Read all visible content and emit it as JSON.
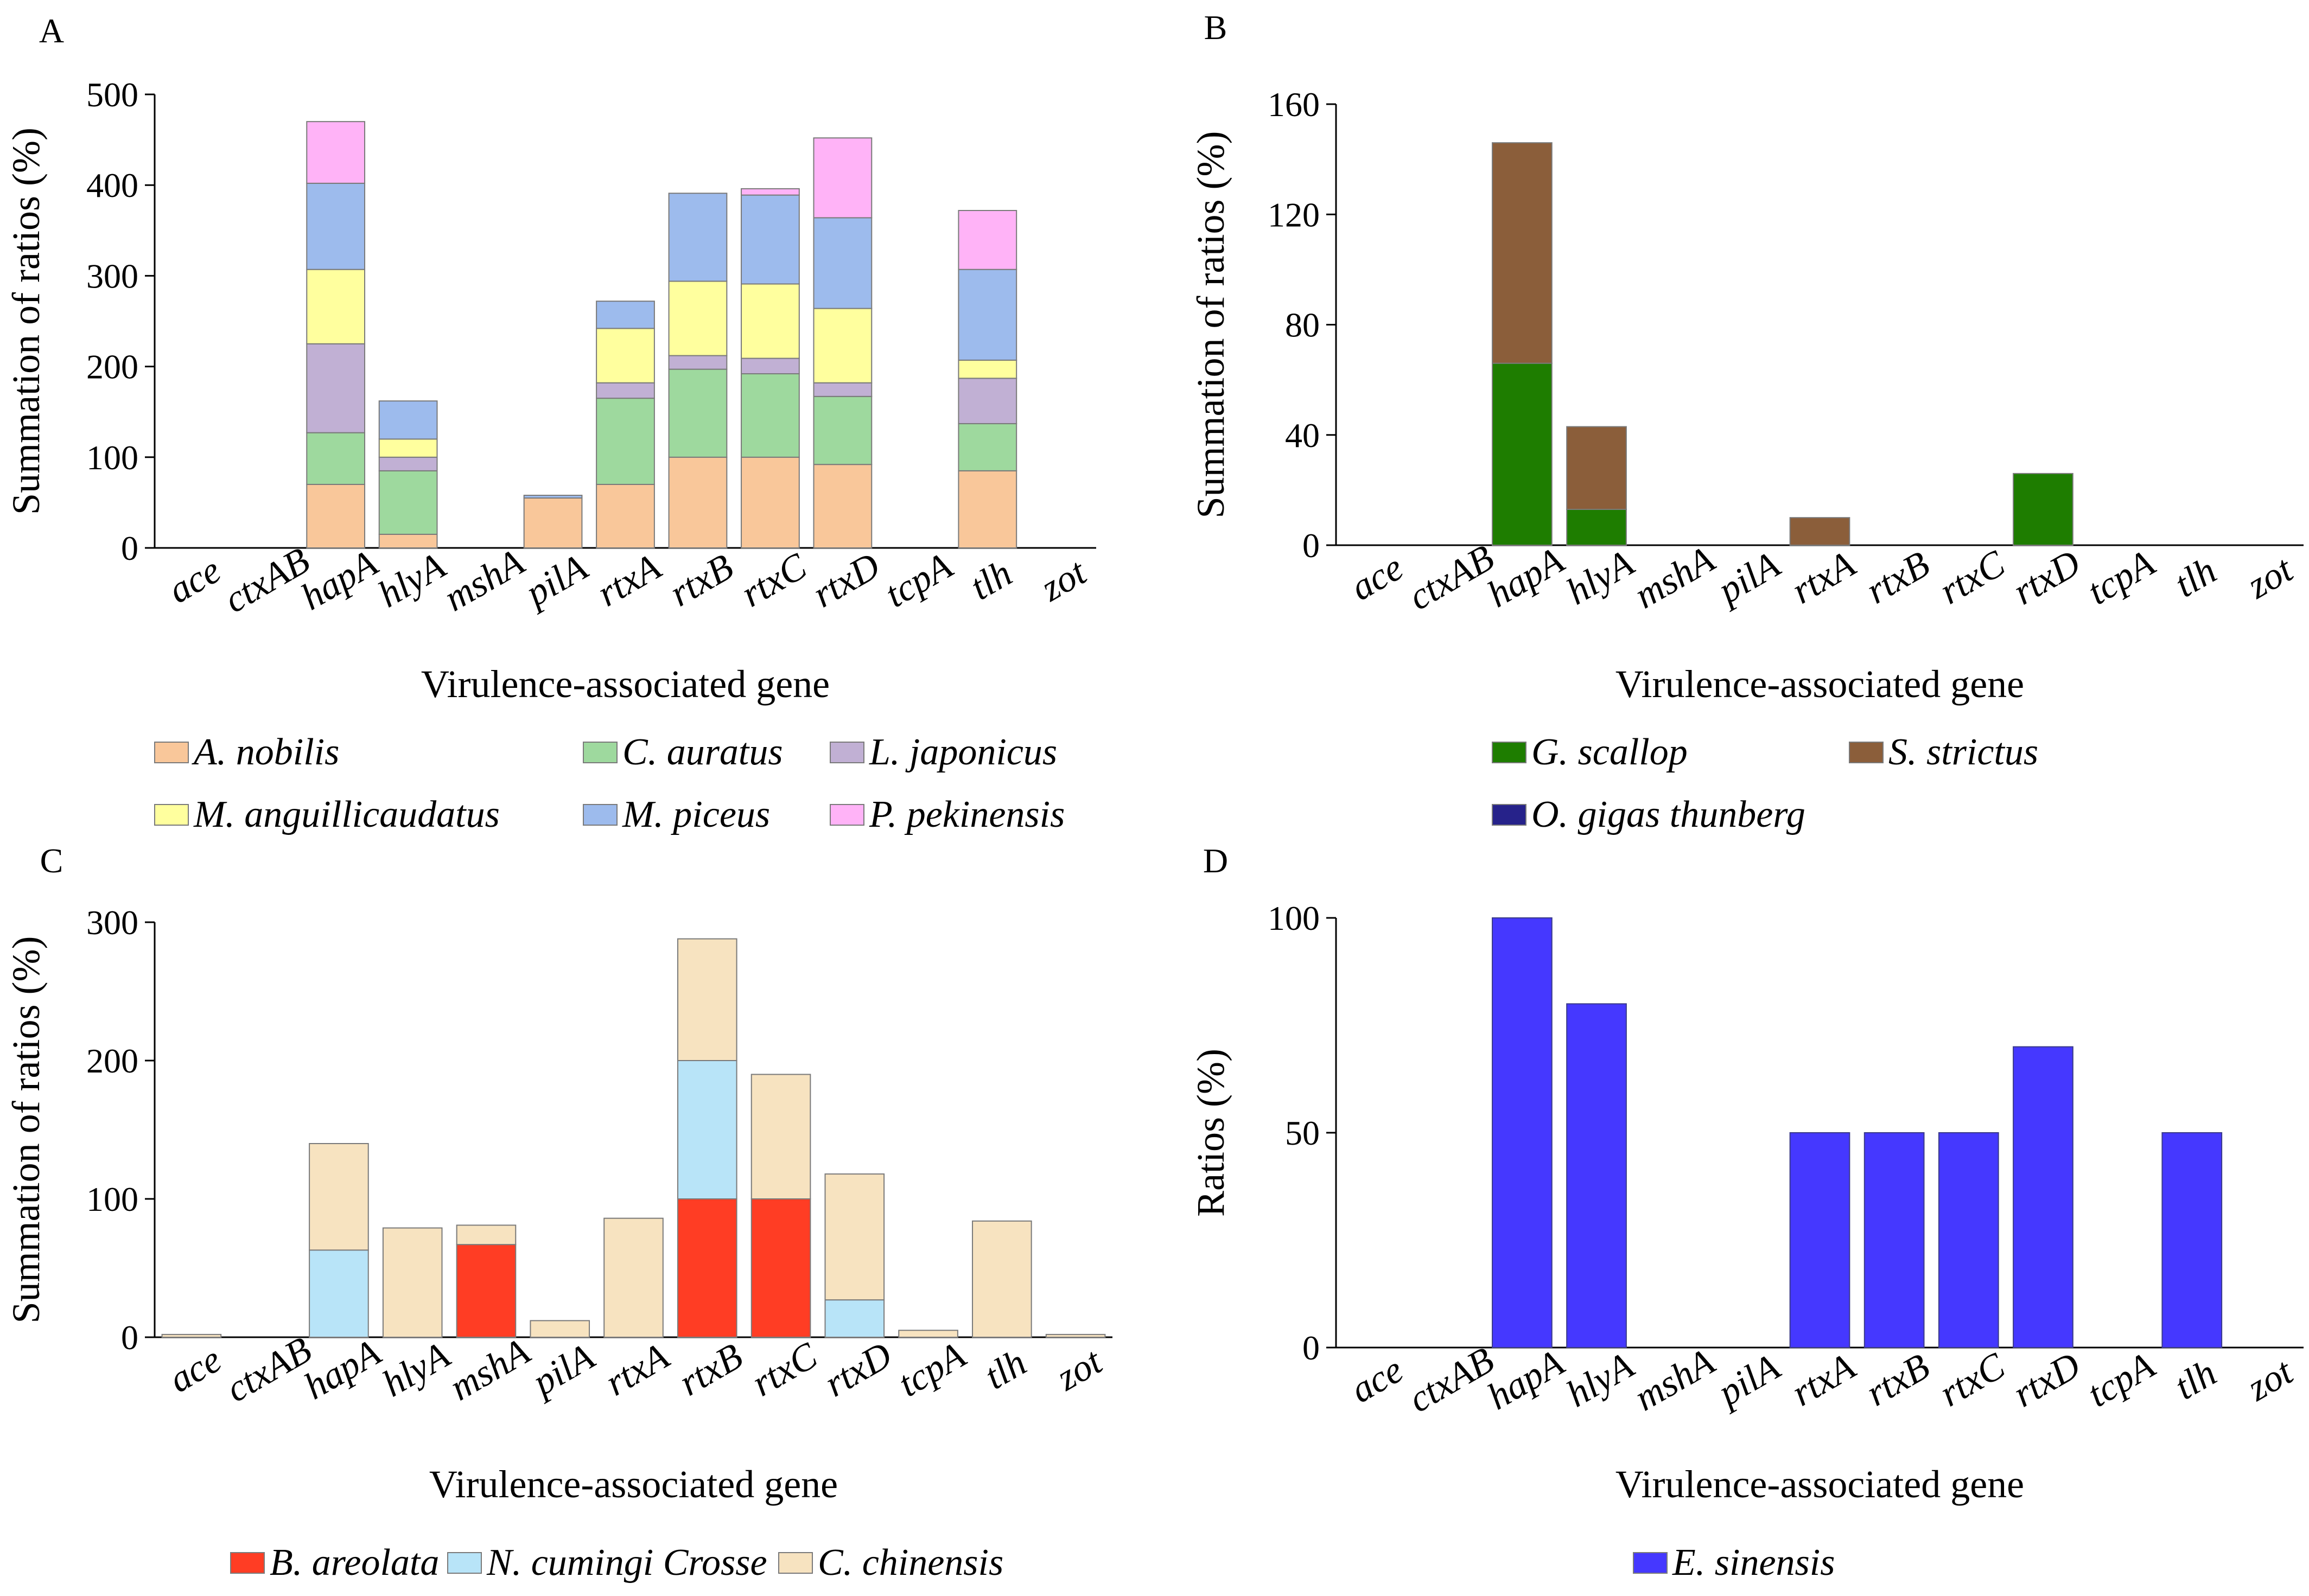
{
  "chart_data": [
    {
      "panel": "A",
      "type": "bar",
      "stacked": true,
      "categories": [
        "ace",
        "ctxAB",
        "hapA",
        "hlyA",
        "mshA",
        "pilA",
        "rtxA",
        "rtxB",
        "rtxC",
        "rtxD",
        "tcpA",
        "tlh",
        "zot"
      ],
      "xlabel": "Virulence-associated gene",
      "ylabel": "Summation of ratios (%)",
      "ylim": [
        0,
        500
      ],
      "yticks": [
        0,
        100,
        200,
        300,
        400,
        500
      ],
      "series": [
        {
          "name": "A. nobilis",
          "color": "#f9c79a",
          "values": [
            0,
            0,
            70,
            15,
            0,
            55,
            70,
            100,
            100,
            92,
            0,
            85,
            0
          ]
        },
        {
          "name": "C. auratus",
          "color": "#9ed99e",
          "values": [
            0,
            0,
            57,
            70,
            0,
            0,
            95,
            97,
            92,
            75,
            0,
            52,
            0
          ]
        },
        {
          "name": "L. japonicus",
          "color": "#c1b0d4",
          "values": [
            0,
            0,
            98,
            15,
            0,
            0,
            17,
            15,
            17,
            15,
            0,
            50,
            0
          ]
        },
        {
          "name": "M. anguillicaudatus",
          "color": "#ffff9e",
          "values": [
            0,
            0,
            82,
            20,
            0,
            0,
            60,
            82,
            82,
            82,
            0,
            20,
            0
          ]
        },
        {
          "name": "M. piceus",
          "color": "#9dbbed",
          "values": [
            0,
            0,
            95,
            42,
            0,
            3,
            30,
            97,
            98,
            100,
            0,
            100,
            0
          ]
        },
        {
          "name": "P. pekinensis",
          "color": "#ffb3f7",
          "values": [
            0,
            0,
            68,
            0,
            0,
            0,
            0,
            0,
            7,
            88,
            0,
            65,
            0
          ]
        }
      ]
    },
    {
      "panel": "B",
      "type": "bar",
      "stacked": true,
      "categories": [
        "ace",
        "ctxAB",
        "hapA",
        "hlyA",
        "mshA",
        "pilA",
        "rtxA",
        "rtxB",
        "rtxC",
        "rtxD",
        "tcpA",
        "tlh",
        "zot"
      ],
      "xlabel": "Virulence-associated gene",
      "ylabel": "Summation of ratios (%)",
      "ylim": [
        0,
        160
      ],
      "yticks": [
        0,
        40,
        80,
        120,
        160
      ],
      "series": [
        {
          "name": "G. scallop",
          "color": "#1e7d00",
          "values": [
            0,
            0,
            66,
            13,
            0,
            0,
            0,
            0,
            0,
            26,
            0,
            0,
            0
          ]
        },
        {
          "name": "S. strictus",
          "color": "#8b5e3a",
          "values": [
            0,
            0,
            80,
            30,
            0,
            0,
            10,
            0,
            0,
            0,
            0,
            0,
            0
          ]
        },
        {
          "name": "O. gigas thunberg",
          "color": "#26228a",
          "values": [
            0,
            0,
            0,
            0,
            0,
            0,
            0,
            0,
            0,
            0,
            0,
            0,
            0
          ]
        }
      ]
    },
    {
      "panel": "C",
      "type": "bar",
      "stacked": true,
      "categories": [
        "ace",
        "ctxAB",
        "hapA",
        "hlyA",
        "mshA",
        "pilA",
        "rtxA",
        "rtxB",
        "rtxC",
        "rtxD",
        "tcpA",
        "tlh",
        "zot"
      ],
      "xlabel": "Virulence-associated gene",
      "ylabel": "Summation of ratios (%)",
      "ylim": [
        0,
        300
      ],
      "yticks": [
        0,
        100,
        200,
        300
      ],
      "series": [
        {
          "name": "B. areolata",
          "color": "#ff3d24",
          "values": [
            0,
            0,
            0,
            0,
            67,
            0,
            0,
            100,
            100,
            0,
            0,
            0,
            0
          ]
        },
        {
          "name": "N. cumingi Crosse",
          "color": "#b8e4f8",
          "values": [
            0,
            0,
            63,
            0,
            0,
            0,
            0,
            100,
            0,
            27,
            0,
            0,
            0
          ]
        },
        {
          "name": "C. chinensis",
          "color": "#f7e3c0",
          "values": [
            2,
            0,
            77,
            79,
            14,
            12,
            86,
            88,
            90,
            91,
            5,
            84,
            2
          ]
        }
      ]
    },
    {
      "panel": "D",
      "type": "bar",
      "stacked": false,
      "categories": [
        "ace",
        "ctxAB",
        "hapA",
        "hlyA",
        "mshA",
        "pilA",
        "rtxA",
        "rtxB",
        "rtxC",
        "rtxD",
        "tcpA",
        "tlh",
        "zot"
      ],
      "xlabel": "Virulence-associated gene",
      "ylabel": "Ratios (%)",
      "ylim": [
        0,
        100
      ],
      "yticks": [
        0,
        50,
        100
      ],
      "series": [
        {
          "name": "E. sinensis",
          "color": "#4538ff",
          "values": [
            0,
            0,
            100,
            80,
            0,
            0,
            50,
            50,
            50,
            70,
            0,
            50,
            0
          ]
        }
      ]
    }
  ]
}
